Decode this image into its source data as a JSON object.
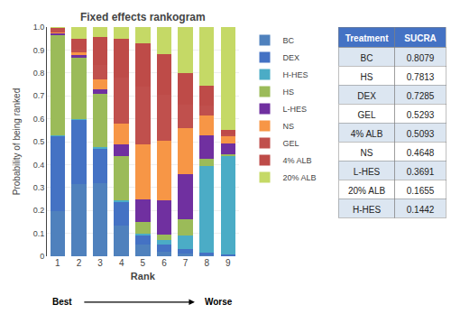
{
  "chart_data": {
    "type": "bar",
    "title": "Fixed effects rankogram",
    "xlabel": "Rank",
    "ylabel": "Probability of being ranked",
    "categories": [
      "1",
      "2",
      "3",
      "4",
      "5",
      "6",
      "7",
      "8",
      "9"
    ],
    "stacked": true,
    "series": [
      {
        "name": "BC",
        "color": "#4f81bd",
        "values": [
          0.195,
          0.315,
          0.32,
          0.135,
          0.05,
          0.02,
          0.01,
          0.004,
          0.001
        ]
      },
      {
        "name": "DEX",
        "color": "#4472c4",
        "values": [
          0.33,
          0.28,
          0.15,
          0.1,
          0.04,
          0.03,
          0.02,
          0.01,
          0.008
        ]
      },
      {
        "name": "H-HES",
        "color": "#4bacc6",
        "values": [
          0.003,
          0.003,
          0.005,
          0.008,
          0.01,
          0.02,
          0.06,
          0.38,
          0.43
        ]
      },
      {
        "name": "HS",
        "color": "#9bbb59",
        "values": [
          0.44,
          0.27,
          0.235,
          0.195,
          0.05,
          0.025,
          0.07,
          0.032,
          0.004
        ]
      },
      {
        "name": "L-HES",
        "color": "#7030a0",
        "values": [
          0.005,
          0.01,
          0.02,
          0.05,
          0.1,
          0.15,
          0.2,
          0.1,
          0.05
        ]
      },
      {
        "name": "NS",
        "color": "#f79646",
        "values": [
          0.005,
          0.01,
          0.04,
          0.09,
          0.24,
          0.26,
          0.2,
          0.09,
          0.03
        ]
      },
      {
        "name": "GEL",
        "color": "#c0504d",
        "values": [
          0.01,
          0.015,
          0.065,
          0.2,
          0.25,
          0.2,
          0.1,
          0.04,
          0.01
        ]
      },
      {
        "name": "4% ALB",
        "color": "#be4b48",
        "values": [
          0.01,
          0.045,
          0.12,
          0.17,
          0.19,
          0.175,
          0.14,
          0.09,
          0.02
        ]
      },
      {
        "name": "20% ALB",
        "color": "#c5d966",
        "values": [
          0.002,
          0.052,
          0.045,
          0.052,
          0.07,
          0.12,
          0.2,
          0.254,
          0.447
        ]
      }
    ],
    "ylim": [
      0,
      1.0
    ],
    "yticks": [
      0,
      0.1,
      0.2,
      0.3,
      0.4,
      0.5,
      0.6,
      0.7,
      0.8,
      0.9,
      {
        "value": 1.0,
        "label": "1.0"
      }
    ],
    "grid": true,
    "legend": "right",
    "annotations": [
      "Best",
      "Worse"
    ],
    "table": {
      "header": [
        "Treatment",
        "SUCRA"
      ],
      "cells": [
        [
          "BC",
          "HS",
          "DEX",
          "GEL",
          "4% ALB",
          "NS",
          "L-HES",
          "20% ALB",
          "H-HES"
        ],
        [
          0.8079,
          0.7813,
          0.7285,
          0.5293,
          0.5093,
          0.4648,
          0.3691,
          0.1655,
          0.1442
        ]
      ]
    }
  }
}
